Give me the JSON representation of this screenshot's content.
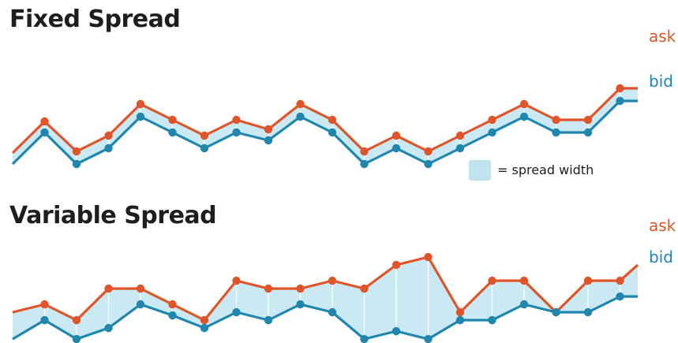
{
  "legend": {
    "text": "= spread width",
    "swatch_color": "#bfe3ef"
  },
  "colors": {
    "ask": "#e0542a",
    "bid": "#1f86ad",
    "fill": "#cbe9f3",
    "divider": "#ffffff"
  },
  "panels": [
    {
      "title": "Fixed Spread",
      "ask_label": "ask",
      "bid_label": "bid",
      "ask": [
        0.7,
        2.7,
        0.8,
        1.8,
        3.8,
        2.8,
        1.8,
        2.8,
        2.2,
        3.8,
        2.8,
        0.8,
        1.8,
        0.8,
        1.8,
        2.8,
        3.8,
        2.8,
        2.8,
        4.8,
        4.8
      ],
      "bid": [
        0.0,
        2.0,
        0.0,
        1.0,
        3.0,
        2.0,
        1.0,
        2.0,
        1.5,
        3.0,
        2.0,
        0.0,
        1.0,
        0.0,
        1.0,
        2.0,
        3.0,
        2.0,
        2.0,
        4.0,
        4.0
      ]
    },
    {
      "title": "Variable Spread",
      "ask_label": "ask",
      "bid_label": "bid",
      "ask": [
        1.7,
        2.2,
        1.2,
        3.2,
        3.2,
        2.2,
        1.2,
        3.7,
        3.2,
        3.2,
        3.7,
        3.2,
        4.7,
        5.2,
        1.7,
        3.7,
        3.7,
        1.7,
        3.7,
        3.7,
        4.7
      ],
      "bid": [
        0.0,
        1.2,
        0.0,
        0.7,
        2.2,
        1.5,
        0.7,
        1.7,
        1.2,
        2.2,
        1.7,
        0.0,
        0.5,
        0.0,
        1.2,
        1.2,
        2.2,
        1.7,
        1.7,
        2.7,
        2.7
      ]
    }
  ]
}
